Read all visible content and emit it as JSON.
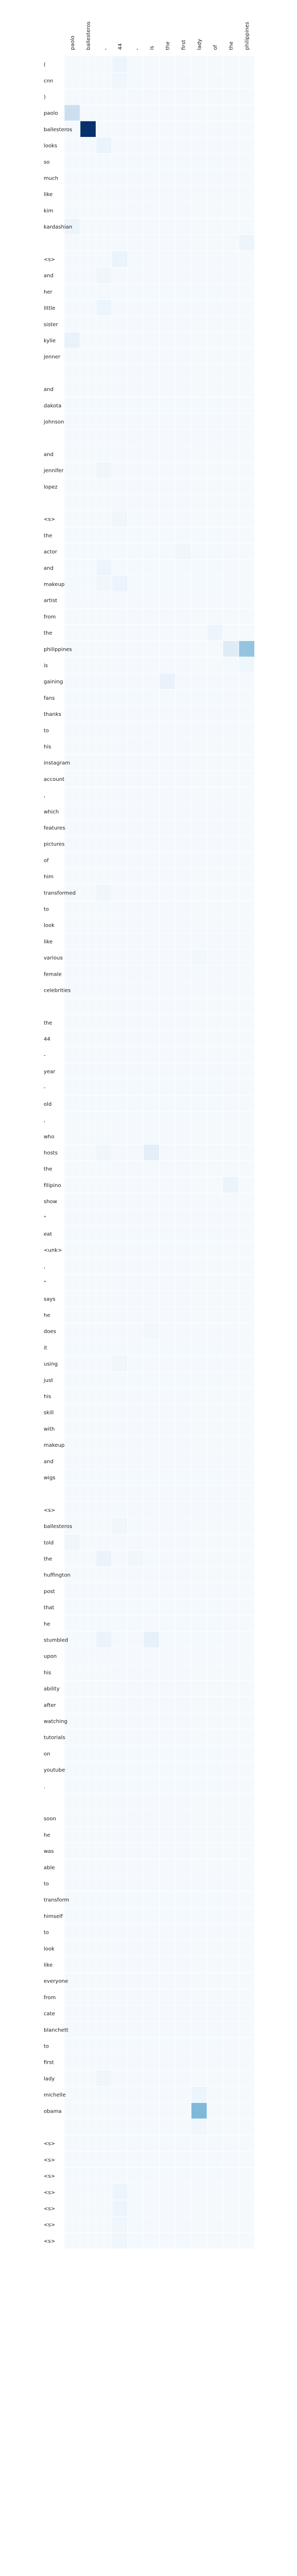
{
  "colors": {
    "cell_min": "#f7fbff",
    "cell_max": "#08306b",
    "grid": "#ffffff"
  },
  "chart_data": {
    "type": "heatmap",
    "title": "",
    "xlabel": "",
    "ylabel": "",
    "color_range": [
      0,
      1
    ],
    "x_labels": [
      "paolo",
      "ballesteros",
      ",",
      "44",
      ",",
      "is",
      "the",
      "first",
      "lady",
      "of",
      "the",
      "philippines"
    ],
    "y_labels": [
      "(",
      "cnn",
      ")",
      "paolo",
      "ballesteros",
      "looks",
      "so",
      "much",
      "like",
      "kim",
      "kardashian",
      "",
      "<s>",
      "and",
      "her",
      "little",
      "sister",
      "kylie",
      "jenner",
      "",
      "and",
      "dakota",
      "johnson",
      "",
      "and",
      "jennifer",
      "lopez",
      "",
      "<s>",
      "the",
      "actor",
      "and",
      "makeup",
      "artist",
      "from",
      "the",
      "philippines",
      "is",
      "gaining",
      "fans",
      "thanks",
      "to",
      "his",
      "instagram",
      "account",
      ",",
      "which",
      "features",
      "pictures",
      "of",
      "him",
      "transformed",
      "to",
      "look",
      "like",
      "various",
      "female",
      "celebrities",
      "",
      "the",
      "44",
      "-",
      "year",
      "-",
      "old",
      ",",
      "who",
      "hosts",
      "the",
      "filipino",
      "show",
      "\"",
      "eat",
      "<unk>",
      ",",
      "\"",
      "says",
      "he",
      "does",
      "it",
      "using",
      "just",
      "his",
      "skill",
      "with",
      "makeup",
      "and",
      "wigs",
      "",
      "<s>",
      "ballesteros",
      "told",
      "the",
      "huffington",
      "post",
      "that",
      "he",
      "stumbled",
      "upon",
      "his",
      "ability",
      "after",
      "watching",
      "tutorials",
      "on",
      "youtube",
      ".",
      "",
      "soon",
      "he",
      "was",
      "able",
      "to",
      "transform",
      "himself",
      "to",
      "look",
      "like",
      "everyone",
      "from",
      "cate",
      "blanchett",
      "to",
      "first",
      "lady",
      "michelle",
      "obama",
      "",
      "<s>",
      "<s>",
      "<s>",
      "<s>",
      "<s>",
      "<s>",
      "<s>"
    ],
    "hotspots": [
      {
        "row": 3,
        "col": 0,
        "value": 0.22
      },
      {
        "row": 4,
        "col": 1,
        "value": 1.0
      },
      {
        "row": 5,
        "col": 2,
        "value": 0.06
      },
      {
        "row": 0,
        "col": 3,
        "value": 0.05
      },
      {
        "row": 1,
        "col": 3,
        "value": 0.04
      },
      {
        "row": 10,
        "col": 0,
        "value": 0.05
      },
      {
        "row": 11,
        "col": 11,
        "value": 0.05
      },
      {
        "row": 12,
        "col": 3,
        "value": 0.06
      },
      {
        "row": 13,
        "col": 2,
        "value": 0.04
      },
      {
        "row": 15,
        "col": 2,
        "value": 0.05
      },
      {
        "row": 17,
        "col": 0,
        "value": 0.07
      },
      {
        "row": 25,
        "col": 2,
        "value": 0.04
      },
      {
        "row": 28,
        "col": 3,
        "value": 0.04
      },
      {
        "row": 30,
        "col": 7,
        "value": 0.04
      },
      {
        "row": 31,
        "col": 2,
        "value": 0.05
      },
      {
        "row": 32,
        "col": 2,
        "value": 0.04
      },
      {
        "row": 32,
        "col": 3,
        "value": 0.06
      },
      {
        "row": 35,
        "col": 9,
        "value": 0.05
      },
      {
        "row": 36,
        "col": 10,
        "value": 0.12
      },
      {
        "row": 36,
        "col": 11,
        "value": 0.4
      },
      {
        "row": 37,
        "col": 11,
        "value": 0.04
      },
      {
        "row": 38,
        "col": 6,
        "value": 0.07
      },
      {
        "row": 51,
        "col": 2,
        "value": 0.04
      },
      {
        "row": 55,
        "col": 8,
        "value": 0.03
      },
      {
        "row": 67,
        "col": 2,
        "value": 0.04
      },
      {
        "row": 67,
        "col": 5,
        "value": 0.1
      },
      {
        "row": 69,
        "col": 10,
        "value": 0.06
      },
      {
        "row": 78,
        "col": 5,
        "value": 0.03
      },
      {
        "row": 80,
        "col": 3,
        "value": 0.04
      },
      {
        "row": 90,
        "col": 3,
        "value": 0.04
      },
      {
        "row": 91,
        "col": 0,
        "value": 0.04
      },
      {
        "row": 92,
        "col": 2,
        "value": 0.06
      },
      {
        "row": 92,
        "col": 4,
        "value": 0.04
      },
      {
        "row": 97,
        "col": 2,
        "value": 0.06
      },
      {
        "row": 97,
        "col": 5,
        "value": 0.08
      },
      {
        "row": 124,
        "col": 2,
        "value": 0.04
      },
      {
        "row": 125,
        "col": 8,
        "value": 0.05
      },
      {
        "row": 126,
        "col": 8,
        "value": 0.45
      },
      {
        "row": 127,
        "col": 8,
        "value": 0.04
      },
      {
        "row": 131,
        "col": 3,
        "value": 0.05
      },
      {
        "row": 132,
        "col": 3,
        "value": 0.05
      },
      {
        "row": 133,
        "col": 3,
        "value": 0.04
      },
      {
        "row": 134,
        "col": 3,
        "value": 0.04
      },
      {
        "row": 135,
        "col": 3,
        "value": 0.04
      },
      {
        "row": 136,
        "col": 3,
        "value": 0.04
      },
      {
        "row": 137,
        "col": 3,
        "value": 0.04
      }
    ],
    "background_value": 0.015,
    "legend": "none",
    "grid": true
  }
}
